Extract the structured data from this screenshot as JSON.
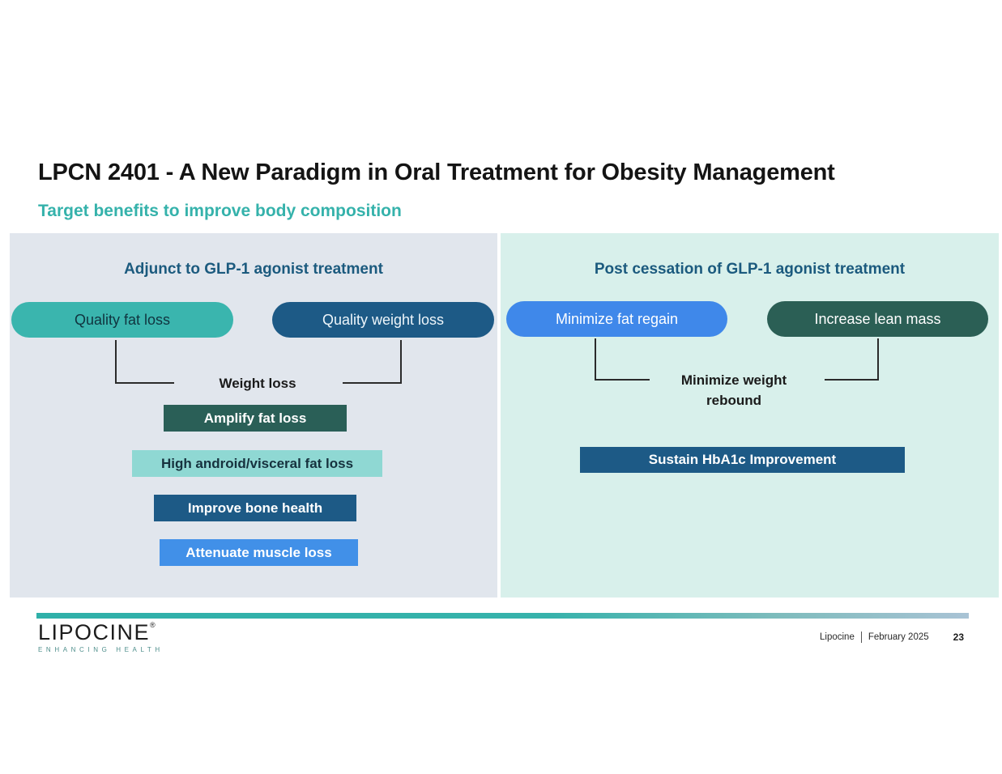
{
  "slide": {
    "title": "LPCN 2401 - A New Paradigm in Oral Treatment for Obesity Management",
    "subtitle": "Target benefits to improve body composition"
  },
  "left_panel": {
    "heading": "Adjunct to GLP-1 agonist treatment",
    "pills": [
      {
        "label": "Quality fat loss",
        "bg": "#3ab5ae",
        "fg": "#10343f"
      },
      {
        "label": "Quality weight loss",
        "bg": "#1d5a86",
        "fg": "#edf5fa"
      }
    ],
    "junction_label": "Weight loss",
    "boxes": [
      {
        "label": "Amplify fat loss",
        "bg": "#2a5f57",
        "fg": "#ffffff"
      },
      {
        "label": "High android/visceral fat loss",
        "bg": "#8fd8d3",
        "fg": "#16323e"
      },
      {
        "label": "Improve bone health",
        "bg": "#1d5a86",
        "fg": "#ffffff"
      },
      {
        "label": "Attenuate muscle loss",
        "bg": "#4190e8",
        "fg": "#ffffff"
      }
    ]
  },
  "right_panel": {
    "heading": "Post cessation of GLP-1 agonist treatment",
    "pills": [
      {
        "label": "Minimize fat regain",
        "bg": "#3f88ea",
        "fg": "#ffffff"
      },
      {
        "label": "Increase lean mass",
        "bg": "#2b5f55",
        "fg": "#ffffff"
      }
    ],
    "junction_label": "Minimize weight rebound",
    "boxes": [
      {
        "label": "Sustain HbA1c Improvement",
        "bg": "#1d5a86",
        "fg": "#ffffff"
      }
    ]
  },
  "footer": {
    "logo_text": "LIPOCINE",
    "logo_mark": "®",
    "logo_tagline": "ENHANCING HEALTH",
    "company": "Lipocine",
    "date": "February 2025",
    "page_number": "23"
  },
  "colors": {
    "accent_teal": "#35b2ab",
    "heading_blue": "#1b5a7e",
    "panel_left_bg": "#e1e6ed",
    "panel_right_bg": "#d8f0eb",
    "connector_line": "#2b2b2b",
    "divider_gradient_start": "#2fb0a9",
    "divider_gradient_end": "#a9c3d5"
  }
}
